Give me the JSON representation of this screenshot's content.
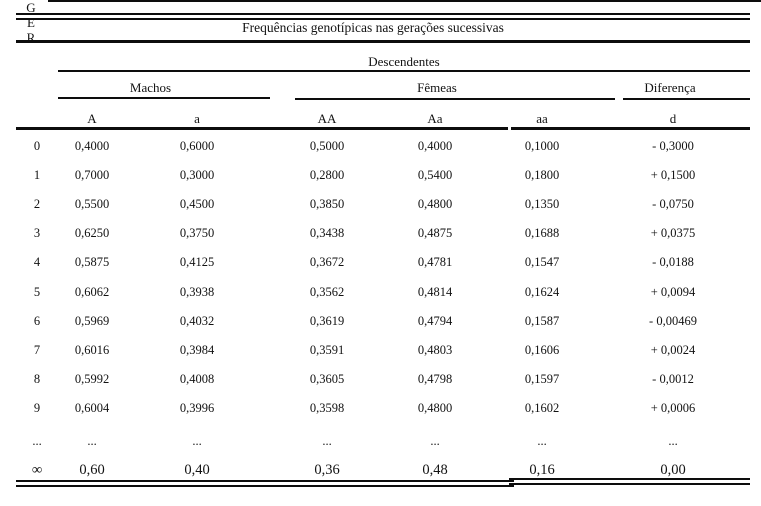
{
  "title": "Frequências genotípicas nas gerações sucessivas",
  "header": {
    "ger": [
      "G",
      "E",
      "R"
    ],
    "descendentes": "Descendentes",
    "machos": "Machos",
    "femeas": "Fêmeas",
    "diferenca": "Diferença",
    "columns": [
      "A",
      "a",
      "AA",
      "Aa",
      "aa",
      "d"
    ]
  },
  "rows": [
    [
      "0",
      "0,4000",
      "0,6000",
      "0,5000",
      "0,4000",
      "0,1000",
      "- 0,3000"
    ],
    [
      "1",
      "0,7000",
      "0,3000",
      "0,2800",
      "0,5400",
      "0,1800",
      "+ 0,1500"
    ],
    [
      "2",
      "0,5500",
      "0,4500",
      "0,3850",
      "0,4800",
      "0,1350",
      "- 0,0750"
    ],
    [
      "3",
      "0,6250",
      "0,3750",
      "0,3438",
      "0,4875",
      "0,1688",
      "+ 0,0375"
    ],
    [
      "4",
      "0,5875",
      "0,4125",
      "0,3672",
      "0,4781",
      "0,1547",
      "- 0,0188"
    ],
    [
      "5",
      "0,6062",
      "0,3938",
      "0,3562",
      "0,4814",
      "0,1624",
      "+ 0,0094"
    ],
    [
      "6",
      "0,5969",
      "0,4032",
      "0,3619",
      "0,4794",
      "0,1587",
      "- 0,00469"
    ],
    [
      "7",
      "0,6016",
      "0,3984",
      "0,3591",
      "0,4803",
      "0,1606",
      "+ 0,0024"
    ],
    [
      "8",
      "0,5992",
      "0,4008",
      "0,3605",
      "0,4798",
      "0,1597",
      "- 0,0012"
    ],
    [
      "9",
      "0,6004",
      "0,3996",
      "0,3598",
      "0,4800",
      "0,1602",
      "+ 0,0006"
    ],
    [
      "...",
      "...",
      "...",
      "...",
      "...",
      "...",
      "..."
    ],
    [
      "∞",
      "0,60",
      "0,40",
      "0,36",
      "0,48",
      "0,16",
      "0,00"
    ]
  ],
  "colors": {
    "ink": "#0d0d0d",
    "background": "#ffffff"
  }
}
